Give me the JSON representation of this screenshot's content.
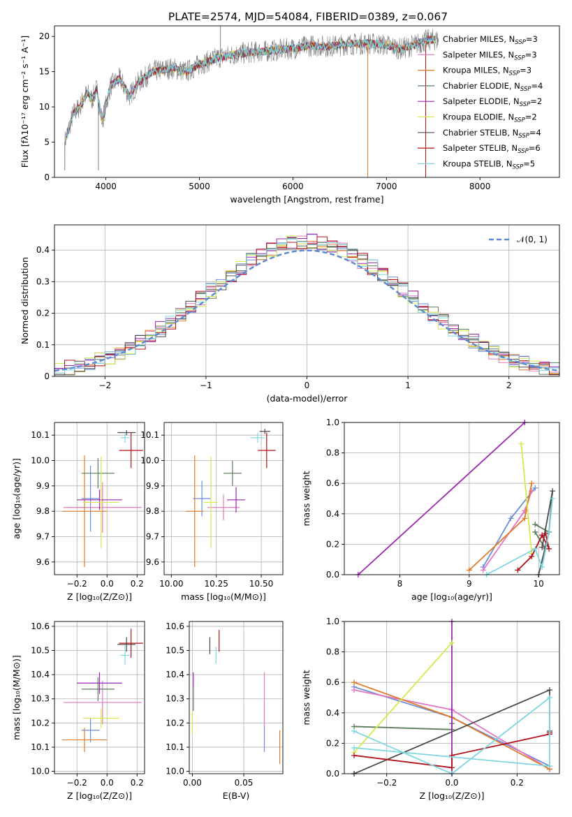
{
  "figure": {
    "title": "PLATE=2574, MJD=54084, FIBERID=0389, z=0.067"
  },
  "chart_data": [
    {
      "id": "spectrum",
      "type": "line",
      "xlabel": "wavelength [Angstrom, rest frame]",
      "ylabel": "Flux [fλ10⁻¹⁷ erg cm⁻² s⁻¹ A⁻¹]",
      "xlim": [
        3450,
        8850
      ],
      "ylim": [
        0,
        21.5
      ],
      "xticks": [
        4000,
        5000,
        6000,
        7000,
        8000
      ],
      "yticks": [
        0,
        5,
        10,
        15,
        20
      ],
      "grid": false,
      "legend_position": "right",
      "observed_spectrum_color": "#808080",
      "continuum_knots": {
        "x": [
          3560,
          3650,
          3720,
          3800,
          3850,
          3900,
          3960,
          4050,
          4150,
          4250,
          4350,
          4500,
          4700,
          4860,
          5000,
          5200,
          5400,
          5600,
          5800,
          6000,
          6200,
          6400,
          6600,
          6800,
          7000,
          7150,
          7300,
          7450,
          7550
        ],
        "y": [
          5,
          9,
          10,
          12,
          11,
          12.5,
          8,
          13,
          14,
          11.5,
          13.5,
          15,
          15.5,
          15,
          16,
          17,
          17.5,
          17.8,
          18,
          18.3,
          18.7,
          18.6,
          18.9,
          19,
          18.8,
          18.2,
          18.8,
          19.5,
          19.5
        ]
      },
      "series": [
        {
          "name": "Chabrier MILES, N_SSP=3",
          "color": "#6b8ed6",
          "legend": {
            "prefix": "Chabrier MILES, N",
            "sub": "SSP",
            "suffix": "=3"
          }
        },
        {
          "name": "Salpeter MILES, N_SSP=3",
          "color": "#e377c2",
          "legend": {
            "prefix": "Salpeter MILES, N",
            "sub": "SSP",
            "suffix": "=3"
          }
        },
        {
          "name": "Kroupa MILES, N_SSP=3",
          "color": "#e07b29",
          "legend": {
            "prefix": "Kroupa MILES, N",
            "sub": "SSP",
            "suffix": "=3"
          }
        },
        {
          "name": "Chabrier ELODIE, N_SSP=4",
          "color": "#5a7d5a",
          "legend": {
            "prefix": "Chabrier ELODIE, N",
            "sub": "SSP",
            "suffix": "=4"
          }
        },
        {
          "name": "Salpeter ELODIE, N_SSP=2",
          "color": "#9b27b0",
          "legend": {
            "prefix": "Salpeter ELODIE, N",
            "sub": "SSP",
            "suffix": "=2"
          }
        },
        {
          "name": "Kroupa ELODIE, N_SSP=2",
          "color": "#d4ea4a",
          "legend": {
            "prefix": "Kroupa ELODIE, N",
            "sub": "SSP",
            "suffix": "=2"
          }
        },
        {
          "name": "Chabrier STELIB, N_SSP=4",
          "color": "#4a4a4a",
          "legend": {
            "prefix": "Chabrier STELIB, N",
            "sub": "SSP",
            "suffix": "=4"
          }
        },
        {
          "name": "Salpeter STELIB, N_SSP=6",
          "color": "#b0101a",
          "legend": {
            "prefix": "Salpeter STELIB, N",
            "sub": "SSP",
            "suffix": "=6"
          }
        },
        {
          "name": "Kroupa STELIB, N_SSP=5",
          "color": "#7fd6de",
          "legend": {
            "prefix": "Kroupa STELIB, N",
            "sub": "SSP",
            "suffix": "=5"
          }
        }
      ]
    },
    {
      "id": "residuals",
      "type": "line",
      "xlabel": "(data-model)/error",
      "ylabel": "Normed distribution",
      "xlim": [
        -2.5,
        2.5
      ],
      "ylim": [
        0,
        0.48
      ],
      "xticks": [
        -2,
        -1,
        0,
        1,
        2
      ],
      "xticklabels": [
        "−2",
        "−1",
        "0",
        "1",
        "2"
      ],
      "yticks": [
        0,
        0.1,
        0.2,
        0.3,
        0.4
      ],
      "grid": true,
      "legend_position": "top-right",
      "reference": {
        "label": "𝒩(0, 1)",
        "color": "#5b8bd0",
        "dashed": true
      },
      "bin_width": 0.1
    },
    {
      "id": "age-vs-Z",
      "type": "scatter",
      "xlabel": "Z [log₁₀(Z/Z⊙)]",
      "ylabel": "age  [log₁₀(age/yr)]",
      "xlim": [
        -0.35,
        0.25
      ],
      "ylim": [
        9.55,
        10.15
      ],
      "xticks": [
        -0.2,
        0.0,
        0.2
      ],
      "xticklabels": [
        "−0.2",
        "0.0",
        "0.2"
      ],
      "yticks": [
        9.6,
        9.7,
        9.8,
        9.9,
        10.0,
        10.1
      ],
      "yticklabels": [
        "9.6",
        "9.7",
        "9.8",
        "9.9",
        "10.0",
        "10.1"
      ],
      "grid": true,
      "points": [
        {
          "x": -0.11,
          "y": 9.85,
          "xerr": 0.06,
          "yerr": 0.13
        },
        {
          "x": -0.03,
          "y": 9.815,
          "xerr": 0.26,
          "yerr": 0.1
        },
        {
          "x": -0.15,
          "y": 9.8,
          "xerr": 0.15,
          "yerr": 0.22
        },
        {
          "x": -0.06,
          "y": 9.95,
          "xerr": 0.11,
          "yerr": 0.06
        },
        {
          "x": -0.05,
          "y": 9.845,
          "xerr": 0.15,
          "yerr": 0.04
        },
        {
          "x": -0.04,
          "y": 9.835,
          "xerr": 0.12,
          "yerr": 0.18
        },
        {
          "x": 0.13,
          "y": 10.11,
          "xerr": 0.06,
          "yerr": 0.01
        },
        {
          "x": 0.16,
          "y": 10.04,
          "xerr": 0.08,
          "yerr": 0.07
        },
        {
          "x": 0.12,
          "y": 10.09,
          "xerr": 0.03,
          "yerr": 0.02
        }
      ]
    },
    {
      "id": "age-vs-mass",
      "type": "scatter",
      "xlabel": "mass [log₁₀(M/M⊙)]",
      "xlim": [
        9.96,
        10.62
      ],
      "ylim": [
        9.55,
        10.15
      ],
      "xticks": [
        10.0,
        10.25,
        10.5
      ],
      "xticklabels": [
        "10.00",
        "10.25",
        "10.50"
      ],
      "yticks": [
        9.6,
        9.7,
        9.8,
        9.9,
        10.0,
        10.1
      ],
      "yticklabels": [
        "9.6",
        "9.7",
        "9.8",
        "9.9",
        "10.0",
        "10.1"
      ],
      "grid": true,
      "points": [
        {
          "x": 10.17,
          "y": 9.85,
          "xerr": 0.05,
          "yerr": 0.07
        },
        {
          "x": 10.29,
          "y": 9.815,
          "xerr": 0.09,
          "yerr": 0.05
        },
        {
          "x": 10.13,
          "y": 9.8,
          "xerr": 0.05,
          "yerr": 0.22
        },
        {
          "x": 10.34,
          "y": 9.95,
          "xerr": 0.05,
          "yerr": 0.05
        },
        {
          "x": 10.36,
          "y": 9.845,
          "xerr": 0.05,
          "yerr": 0.05
        },
        {
          "x": 10.22,
          "y": 9.835,
          "xerr": 0.04,
          "yerr": 0.18
        },
        {
          "x": 10.52,
          "y": 10.115,
          "xerr": 0.03,
          "yerr": 0.01
        },
        {
          "x": 10.53,
          "y": 10.04,
          "xerr": 0.05,
          "yerr": 0.07
        },
        {
          "x": 10.48,
          "y": 10.09,
          "xerr": 0.04,
          "yerr": 0.02
        }
      ]
    },
    {
      "id": "weight-vs-age",
      "type": "line",
      "xlabel": "age  [log₁₀(age/yr)]",
      "ylabel": "mass weight",
      "xlim": [
        7.2,
        10.3
      ],
      "ylim": [
        0,
        1.0
      ],
      "xticks": [
        8,
        9,
        10
      ],
      "yticks": [
        0.0,
        0.2,
        0.4,
        0.6,
        0.8,
        1.0
      ],
      "yticklabels": [
        "0.0",
        "0.2",
        "0.4",
        "0.6",
        "0.8",
        "1.0"
      ],
      "grid": true,
      "series": [
        {
          "x": [
            9.2,
            9.6,
            9.95
          ],
          "y": [
            0.05,
            0.37,
            0.57
          ]
        },
        {
          "x": [
            9.2,
            9.8,
            9.9
          ],
          "y": [
            0.03,
            0.42,
            0.55
          ]
        },
        {
          "x": [
            9.0,
            9.8,
            9.9
          ],
          "y": [
            0.03,
            0.37,
            0.6
          ]
        },
        {
          "x": [
            9.95,
            10.15,
            10.1,
            9.95
          ],
          "y": [
            0.33,
            0.28,
            0.17,
            0.28
          ]
        },
        {
          "x": [
            7.4,
            9.8
          ],
          "y": [
            0.0,
            1.0
          ]
        },
        {
          "x": [
            9.75,
            9.9
          ],
          "y": [
            0.86,
            0.14
          ]
        },
        {
          "x": [
            10.0,
            10.15,
            10.2,
            10.05
          ],
          "y": [
            0.0,
            0.28,
            0.55,
            0.18
          ]
        },
        {
          "x": [
            9.7,
            9.9,
            10.05,
            10.15,
            10.1
          ],
          "y": [
            0.03,
            0.12,
            0.26,
            0.17,
            0.27
          ]
        },
        {
          "x": [
            9.25,
            9.95,
            10.05,
            10.15,
            10.2
          ],
          "y": [
            0.0,
            0.17,
            0.05,
            0.28,
            0.5
          ]
        }
      ]
    },
    {
      "id": "mass-vs-Z",
      "type": "scatter",
      "xlabel": "Z [log₁₀(Z/Z⊙)]",
      "ylabel": "mass [log₁₀(M/M⊙)]",
      "xlim": [
        -0.35,
        0.25
      ],
      "ylim": [
        9.99,
        10.62
      ],
      "xticks": [
        -0.2,
        0.0,
        0.2
      ],
      "xticklabels": [
        "−0.2",
        "0.0",
        "0.2"
      ],
      "yticks": [
        10.0,
        10.1,
        10.2,
        10.3,
        10.4,
        10.5,
        10.6
      ],
      "yticklabels": [
        "10.0",
        "10.1",
        "10.2",
        "10.3",
        "10.4",
        "10.5",
        "10.6"
      ],
      "grid": true,
      "points": [
        {
          "x": -0.11,
          "y": 10.17,
          "xerr": 0.06,
          "yerr": 0.05
        },
        {
          "x": -0.03,
          "y": 10.285,
          "xerr": 0.26,
          "yerr": 0.09
        },
        {
          "x": -0.15,
          "y": 10.13,
          "xerr": 0.15,
          "yerr": 0.05
        },
        {
          "x": -0.06,
          "y": 10.34,
          "xerr": 0.11,
          "yerr": 0.05
        },
        {
          "x": -0.05,
          "y": 10.365,
          "xerr": 0.15,
          "yerr": 0.045
        },
        {
          "x": -0.04,
          "y": 10.22,
          "xerr": 0.12,
          "yerr": 0.04
        },
        {
          "x": 0.13,
          "y": 10.525,
          "xerr": 0.06,
          "yerr": 0.03
        },
        {
          "x": 0.16,
          "y": 10.53,
          "xerr": 0.08,
          "yerr": 0.06
        },
        {
          "x": 0.12,
          "y": 10.48,
          "xerr": 0.03,
          "yerr": 0.04
        }
      ]
    },
    {
      "id": "mass-vs-ebv",
      "type": "scatter",
      "xlabel": "E(B-V)",
      "xlim": [
        -0.003,
        0.088
      ],
      "ylim": [
        9.99,
        10.62
      ],
      "xticks": [
        0.0,
        0.05
      ],
      "xticklabels": [
        "0.00",
        "0.05"
      ],
      "yticks": [
        10.0,
        10.1,
        10.2,
        10.3,
        10.4,
        10.5,
        10.6
      ],
      "yticklabels": [
        "10.0",
        "10.1",
        "10.2",
        "10.3",
        "10.4",
        "10.5",
        "10.6"
      ],
      "grid": true,
      "points": [
        {
          "x": 0.07,
          "y": 10.17,
          "yerr": 0.09
        },
        {
          "x": 0.07,
          "y": 10.3,
          "yerr": 0.11
        },
        {
          "x": 0.085,
          "y": 10.1,
          "yerr": 0.07
        },
        {
          "x": 0.001,
          "y": 10.3,
          "yerr": 0.05
        },
        {
          "x": 0.001,
          "y": 10.38,
          "yerr": 0.03
        },
        {
          "x": 0.0,
          "y": 10.2,
          "yerr": 0.05
        },
        {
          "x": 0.017,
          "y": 10.52,
          "yerr": 0.035
        },
        {
          "x": 0.026,
          "y": 10.54,
          "yerr": 0.045
        },
        {
          "x": 0.023,
          "y": 10.48,
          "yerr": 0.035
        }
      ]
    },
    {
      "id": "weight-vs-Z",
      "type": "line",
      "xlabel": "Z [log₁₀(Z/Z⊙)]",
      "ylabel": "mass weight",
      "xlim": [
        -0.33,
        0.33
      ],
      "ylim": [
        0,
        1.0
      ],
      "xticks": [
        -0.2,
        0.0,
        0.2
      ],
      "xticklabels": [
        "−0.2",
        "0.0",
        "0.2"
      ],
      "yticks": [
        0.0,
        0.2,
        0.4,
        0.6,
        0.8,
        1.0
      ],
      "yticklabels": [
        "0.0",
        "0.2",
        "0.4",
        "0.6",
        "0.8",
        "1.0"
      ],
      "grid": true,
      "series": [
        {
          "x": [
            -0.3,
            0.0,
            0.3
          ],
          "y": [
            0.57,
            0.37,
            0.05
          ]
        },
        {
          "x": [
            -0.3,
            0.0,
            0.3
          ],
          "y": [
            0.55,
            0.42,
            0.03
          ]
        },
        {
          "x": [
            -0.3,
            0.0,
            0.3
          ],
          "y": [
            0.6,
            0.37,
            0.03
          ]
        },
        {
          "x": [
            -0.3,
            0.0,
            0.0
          ],
          "y": [
            0.31,
            0.29,
            0.33
          ]
        },
        {
          "x": [
            0.0,
            0.0
          ],
          "y": [
            0.0,
            1.0
          ]
        },
        {
          "x": [
            -0.3,
            0.0
          ],
          "y": [
            0.14,
            0.86
          ]
        },
        {
          "x": [
            -0.3,
            -0.3,
            0.3,
            0.3
          ],
          "y": [
            0.0,
            0.0,
            0.55,
            0.28
          ]
        },
        {
          "x": [
            -0.3,
            0.0,
            0.0,
            0.3,
            0.3
          ],
          "y": [
            0.12,
            0.04,
            0.12,
            0.26,
            0.27
          ]
        },
        {
          "x": [
            -0.3,
            0.0,
            0.3,
            0.3,
            -0.3
          ],
          "y": [
            0.28,
            0.0,
            0.5,
            0.05,
            0.17
          ]
        }
      ]
    }
  ]
}
